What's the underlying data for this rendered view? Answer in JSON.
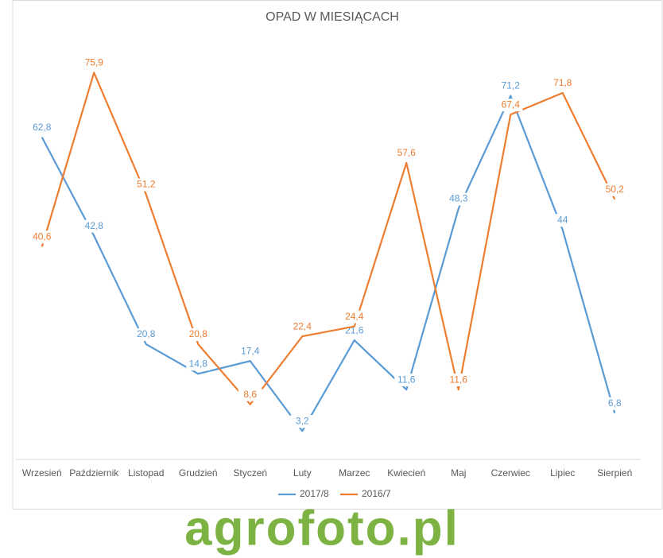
{
  "chart_data": {
    "type": "line",
    "title": "OPAD W MIESIĄCACH",
    "categories": [
      "Wrzesień",
      "Październik",
      "Listopad",
      "Grudzień",
      "Styczeń",
      "Luty",
      "Marzec",
      "Kwiecień",
      "Maj",
      "Czerwiec",
      "Lipiec",
      "Sierpień"
    ],
    "series": [
      {
        "name": "2017/8",
        "color": "#5b9bd5",
        "values": [
          62.8,
          42.8,
          20.8,
          14.8,
          17.4,
          3.2,
          21.6,
          11.6,
          48.3,
          71.2,
          44,
          6.8
        ],
        "value_labels": [
          "62,8",
          "42,8",
          "20,8",
          "14,8",
          "17,4",
          "3,2",
          "21,6",
          "11,6",
          "48,3",
          "71,2",
          "44",
          "6,8"
        ]
      },
      {
        "name": "2016/7",
        "color": "#ed7d31",
        "values": [
          40.6,
          75.9,
          51.2,
          20.8,
          8.6,
          22.4,
          24.4,
          57.6,
          11.6,
          67.4,
          71.8,
          50.2
        ],
        "value_labels": [
          "40,6",
          "75,9",
          "51,2",
          "20,8",
          "8,6",
          "22,4",
          "24,4",
          "57,6",
          "11,6",
          "67,4",
          "71,8",
          "50,2"
        ]
      }
    ],
    "ylim": [
      0,
      80
    ],
    "legend": "bottom"
  },
  "watermark": "agrofoto.pl"
}
